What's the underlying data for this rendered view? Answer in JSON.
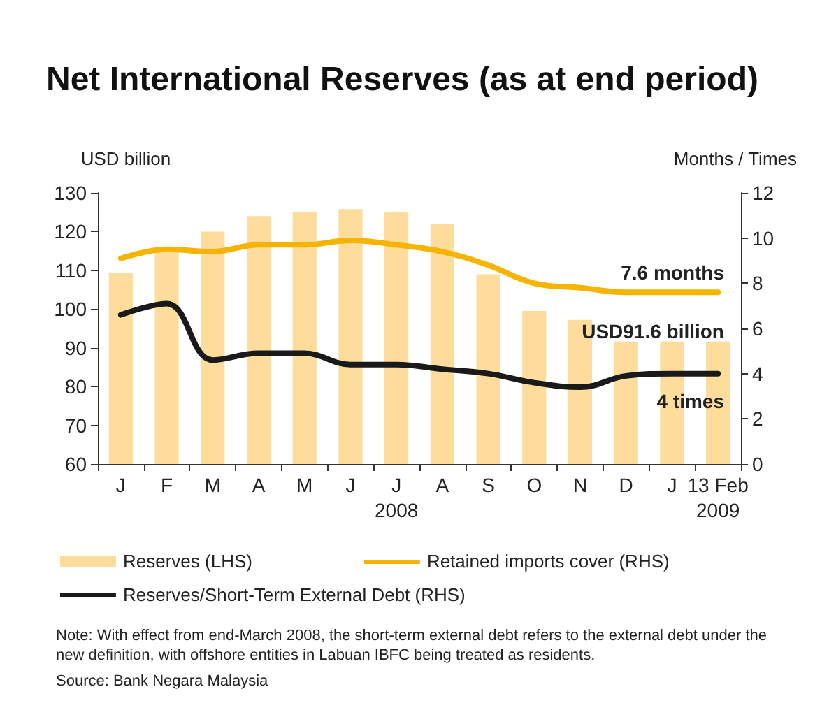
{
  "chart_data": {
    "type": "bar",
    "title": "Net International Reserves (as at end period)",
    "ylabel": "USD billion",
    "y2label": "Months / Times",
    "categories": [
      "J",
      "F",
      "M",
      "A",
      "M",
      "J",
      "J",
      "A",
      "S",
      "O",
      "N",
      "D",
      "J",
      "13 Feb"
    ],
    "series": [
      {
        "name": "Reserves (LHS)",
        "color": "#fddc9c",
        "values": [
          109.4,
          116,
          120,
          124,
          125,
          125.8,
          125,
          122,
          109,
          99.5,
          97.2,
          91.6,
          91.6,
          91.6
        ]
      },
      {
        "name": "Retained imports cover (RHS)",
        "type": "line",
        "axis": "y2",
        "color": "#f5b400",
        "values": [
          9.1,
          9.5,
          9.4,
          9.7,
          9.7,
          9.9,
          9.7,
          9.4,
          8.8,
          8.0,
          7.8,
          7.6,
          7.6,
          7.6
        ]
      },
      {
        "name": "Reserves/Short-Term External Debt (RHS)",
        "type": "line",
        "axis": "y2",
        "color": "#1a1a1a",
        "values": [
          6.6,
          7.1,
          4.6,
          4.9,
          4.9,
          4.4,
          4.4,
          4.2,
          4.0,
          3.6,
          3.4,
          3.9,
          4.0,
          4.0
        ]
      }
    ],
    "ylim": [
      60,
      130
    ],
    "yticks": [
      60,
      70,
      80,
      90,
      100,
      110,
      120,
      130
    ],
    "y2lim": [
      0,
      12
    ],
    "y2ticks": [
      0,
      2,
      4,
      6,
      8,
      10,
      12
    ],
    "grid": false,
    "legend": "bottom",
    "marker": "none",
    "line_style": "solid",
    "annotations": [
      "7.6 months",
      "USD91.6 billion",
      "4 times",
      "2008",
      "2009",
      "Note: With effect from end-March 2008, the short-term external debt refers to the external debt under the new definition, with offshore entities in Labuan IBFC being treated as residents.",
      "Source: Bank Negara Malaysia"
    ]
  }
}
